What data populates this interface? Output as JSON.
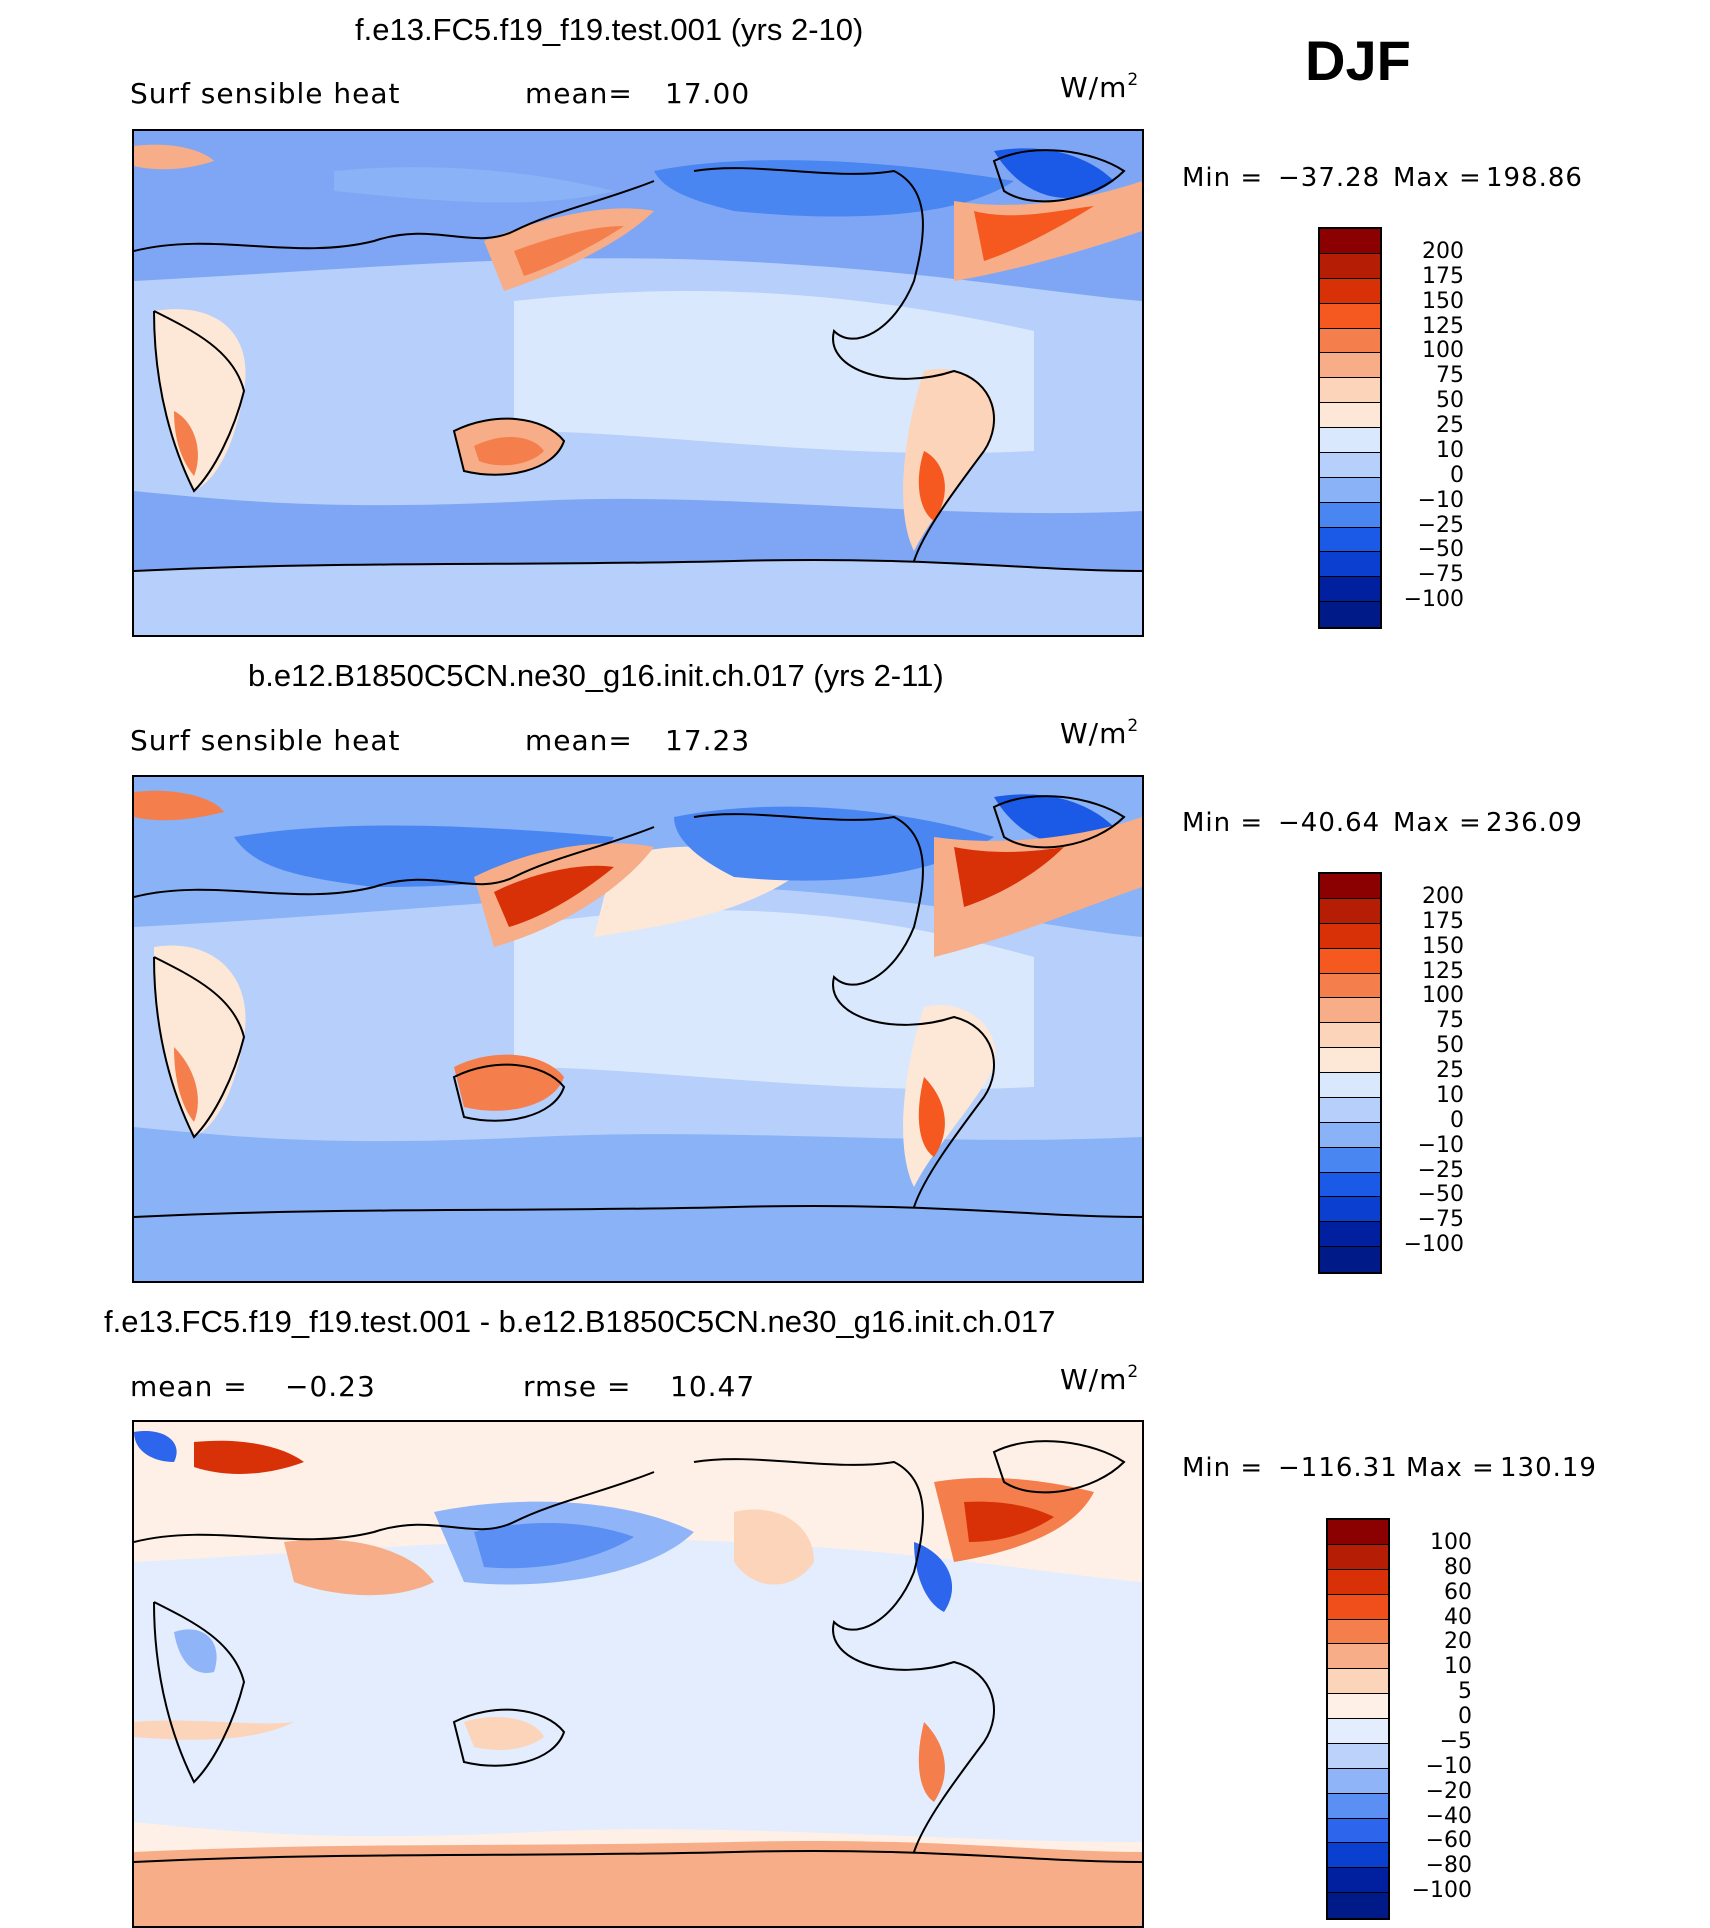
{
  "season": "DJF",
  "panels": [
    {
      "title": "f.e13.FC5.f19_f19.test.001 (yrs 2-10)",
      "variable": "Surf sensible heat",
      "stat1_label": "mean=",
      "stat1_value": "17.00",
      "stat2_label": "",
      "stat2_value": "",
      "units_base": "W/m",
      "units_exp": "2",
      "min_label": "Min =",
      "min_value": "−37.28",
      "max_label": "Max =",
      "max_value": "198.86",
      "colorbar_labels": [
        "200",
        "175",
        "150",
        "125",
        "100",
        "75",
        "50",
        "25",
        "10",
        "0",
        "−10",
        "−25",
        "−50",
        "−75",
        "−100"
      ],
      "colorbar_colors": [
        "#8b0000",
        "#b51d04",
        "#d83007",
        "#f5591f",
        "#f47f4c",
        "#f7ad87",
        "#fcd4b9",
        "#fde8d8",
        "#d9e8fc",
        "#b6cffb",
        "#89b2f7",
        "#4a86f1",
        "#1a5ae6",
        "#0a3fd0",
        "#0020a0",
        "#001a88"
      ],
      "colorbar_note": ""
    },
    {
      "title": "b.e12.B1850C5CN.ne30_g16.init.ch.017 (yrs 2-11)",
      "variable": "Surf sensible heat",
      "stat1_label": "mean=",
      "stat1_value": "17.23",
      "stat2_label": "",
      "stat2_value": "",
      "units_base": "W/m",
      "units_exp": "2",
      "min_label": "Min =",
      "min_value": "−40.64",
      "max_label": "Max =",
      "max_value": "236.09",
      "colorbar_labels": [
        "200",
        "175",
        "150",
        "125",
        "100",
        "75",
        "50",
        "25",
        "10",
        "0",
        "−10",
        "−25",
        "−50",
        "−75",
        "−100"
      ],
      "colorbar_colors": [
        "#8b0000",
        "#b51d04",
        "#d83007",
        "#f5591f",
        "#f47f4c",
        "#f7ad87",
        "#fcd4b9",
        "#fde8d8",
        "#d9e8fc",
        "#b6cffb",
        "#89b2f7",
        "#4a86f1",
        "#1a5ae6",
        "#0a3fd0",
        "#0020a0",
        "#001a88"
      ],
      "colorbar_note": ""
    },
    {
      "title": "f.e13.FC5.f19_f19.test.001 - b.e12.B1850C5CN.ne30_g16.init.ch.017",
      "variable": "",
      "stat1_label": "mean =",
      "stat1_value": "−0.23",
      "stat2_label": "rmse =",
      "stat2_value": "10.47",
      "units_base": "W/m",
      "units_exp": "2",
      "min_label": "Min =",
      "min_value": "−116.31",
      "max_label": "Max =",
      "max_value": "130.19",
      "colorbar_labels": [
        "100",
        "80",
        "60",
        "40",
        "20",
        "10",
        "5",
        "0",
        "−5",
        "−10",
        "−20",
        "−40",
        "−60",
        "−80",
        "−100"
      ],
      "colorbar_colors": [
        "#8b0000",
        "#b51d04",
        "#d83007",
        "#f04e1a",
        "#f47f4c",
        "#f7ad87",
        "#fcd4b9",
        "#fef0e6",
        "#e3edfd",
        "#bcd2fb",
        "#8fb5f8",
        "#5b8ff3",
        "#2d66ec",
        "#0a3fd0",
        "#0020a0",
        "#001a88"
      ],
      "colorbar_note": ""
    }
  ]
}
